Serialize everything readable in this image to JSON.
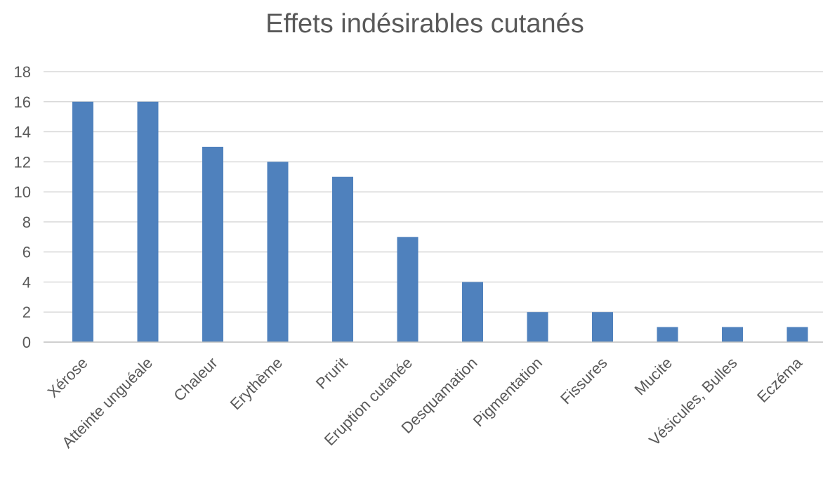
{
  "chart_data": {
    "type": "bar",
    "title": "Effets indésirables cutanés",
    "categories": [
      "Xérose",
      "Atteinte unguéale",
      "Chaleur",
      "Erythème",
      "Prurit",
      "Eruption cutanée",
      "Desquamation",
      "Pigmentation",
      "Fissures",
      "Mucite",
      "Vésicules, Bulles",
      "Eczéma"
    ],
    "values": [
      16,
      16,
      13,
      12,
      11,
      7,
      4,
      2,
      2,
      1,
      1,
      1
    ],
    "ylim": [
      0,
      18
    ],
    "yticks": [
      0,
      2,
      4,
      6,
      8,
      10,
      12,
      14,
      16,
      18
    ],
    "grid": true,
    "bar_color": "#4f81bd",
    "xlabel": "",
    "ylabel": ""
  }
}
